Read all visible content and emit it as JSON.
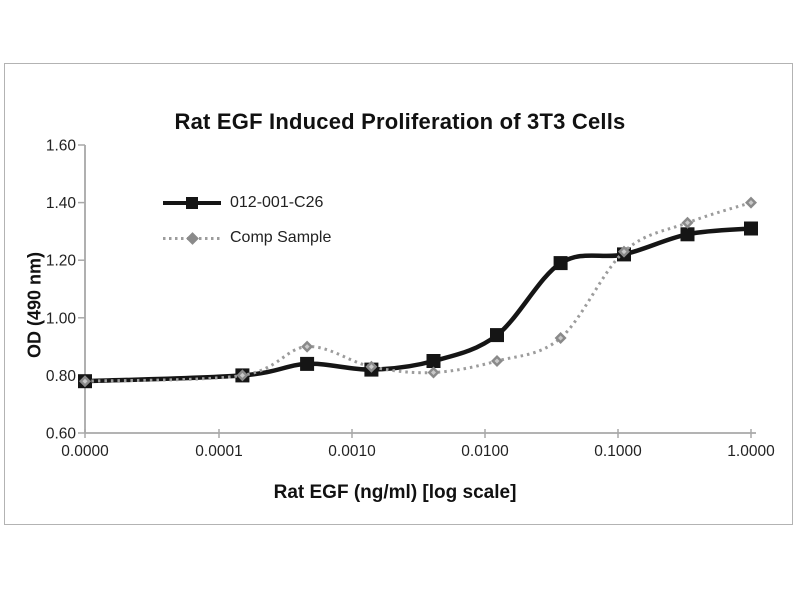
{
  "chart_data": {
    "type": "line",
    "title": "Rat EGF Induced Proliferation of 3T3 Cells",
    "xlabel": "Rat EGF (ng/ml) [log scale]",
    "ylabel": "OD (490 nm)",
    "x_scale": "log-with-zero-origin",
    "x_tick_values": [
      0,
      0.0001,
      0.001,
      0.01,
      0.1,
      1.0
    ],
    "x_tick_labels": [
      "0.0000",
      "0.0001",
      "0.0010",
      "0.0100",
      "0.1000",
      "1.0000"
    ],
    "y_tick_values": [
      0.6,
      0.8,
      1.0,
      1.2,
      1.4,
      1.6
    ],
    "y_tick_labels": [
      "0.60",
      "0.80",
      "1.00",
      "1.20",
      "1.40",
      "1.60"
    ],
    "ylim": [
      0.6,
      1.6
    ],
    "grid": false,
    "legend_position": "upper-left-inside",
    "x": [
      0,
      0.00015,
      0.00046,
      0.0014,
      0.0041,
      0.0123,
      0.037,
      0.111,
      0.333,
      1.0
    ],
    "series": [
      {
        "name": "012-001-C26",
        "line": "solid",
        "marker": "square",
        "color": "#151515",
        "marker_color": "#151515",
        "values": [
          0.78,
          0.8,
          0.84,
          0.82,
          0.85,
          0.94,
          1.19,
          1.22,
          1.29,
          1.31
        ]
      },
      {
        "name": "Comp Sample",
        "line": "dotted",
        "marker": "diamond",
        "color": "#9c9c9c",
        "marker_color": "#8a8a8a",
        "values": [
          0.78,
          0.8,
          0.9,
          0.83,
          0.81,
          0.85,
          0.93,
          1.23,
          1.33,
          1.4
        ]
      }
    ]
  },
  "colors": {
    "axis": "#a8a8a8",
    "frame_border": "#b3b3b3",
    "tick_text": "#222222",
    "background": "#ffffff"
  }
}
